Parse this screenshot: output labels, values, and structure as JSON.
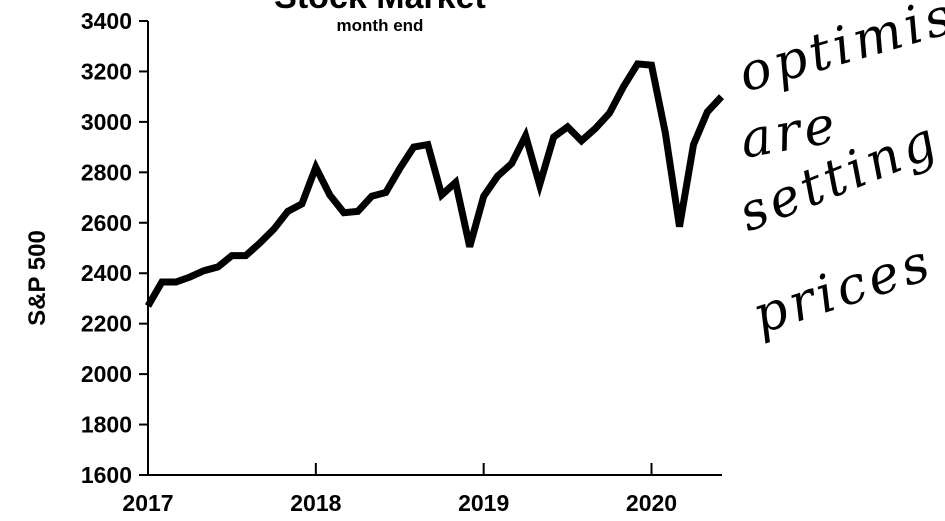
{
  "chart_data": {
    "type": "line",
    "title": "Stock Market",
    "subtitle": "month end",
    "xlabel": "",
    "ylabel": "S&P 500",
    "xlim": [
      2017.0,
      2020.42
    ],
    "ylim": [
      1600,
      3400
    ],
    "x_ticks": [
      "2017",
      "2018",
      "2019",
      "2020"
    ],
    "y_ticks": [
      "1600",
      "1800",
      "2000",
      "2200",
      "2400",
      "2600",
      "2800",
      "3000",
      "3200",
      "3400"
    ],
    "grid": false,
    "series": [
      {
        "x": [
          2017.0,
          2017.083,
          2017.167,
          2017.25,
          2017.333,
          2017.417,
          2017.5,
          2017.583,
          2017.667,
          2017.75,
          2017.833,
          2017.917,
          2018.0,
          2018.083,
          2018.167,
          2018.25,
          2018.333,
          2018.417,
          2018.5,
          2018.583,
          2018.667,
          2018.75,
          2018.833,
          2018.917,
          2019.0,
          2019.083,
          2019.167,
          2019.25,
          2019.333,
          2019.417,
          2019.5,
          2019.583,
          2019.667,
          2019.75,
          2019.833,
          2019.917,
          2020.0,
          2020.083,
          2020.167,
          2020.25,
          2020.333,
          2020.417
        ],
        "values": [
          2270,
          2365,
          2365,
          2385,
          2410,
          2425,
          2470,
          2470,
          2520,
          2575,
          2645,
          2675,
          2820,
          2710,
          2640,
          2645,
          2705,
          2720,
          2815,
          2900,
          2910,
          2710,
          2760,
          2505,
          2705,
          2785,
          2835,
          2945,
          2750,
          2940,
          2980,
          2925,
          2975,
          3035,
          3140,
          3230,
          3225,
          2955,
          2585,
          2910,
          3040,
          3100
        ]
      }
    ],
    "annotation": [
      "optimists",
      "are",
      "setting",
      "prices"
    ]
  }
}
